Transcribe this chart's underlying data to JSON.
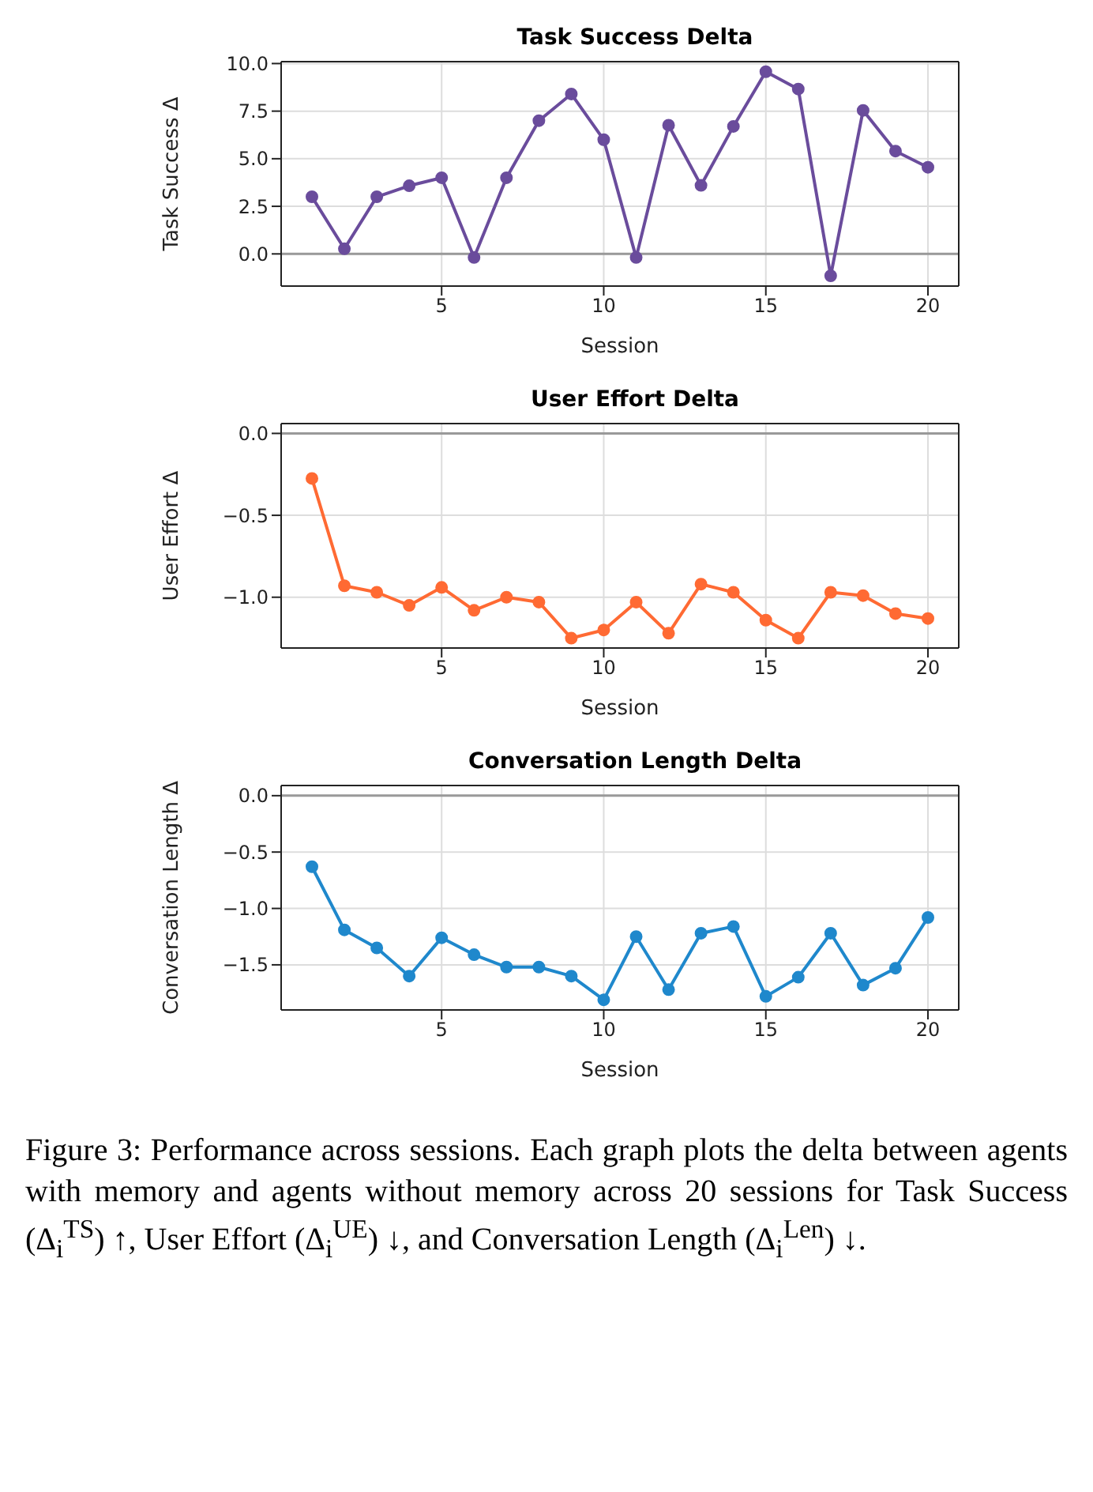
{
  "chart_data": [
    {
      "type": "line",
      "title": "Task Success Delta",
      "xlabel": "Session",
      "ylabel": "Task Success Δ",
      "x": [
        1,
        2,
        3,
        4,
        5,
        6,
        7,
        8,
        9,
        10,
        11,
        12,
        13,
        14,
        15,
        16,
        17,
        18,
        19,
        20
      ],
      "series": [
        {
          "color": "#6a4c9c",
          "values": [
            3.0,
            0.27,
            3.0,
            3.58,
            4.0,
            -0.19,
            4.0,
            7.0,
            8.4,
            6.0,
            -0.19,
            6.76,
            3.6,
            6.7,
            9.57,
            8.66,
            -1.15,
            7.54,
            5.4,
            4.55
          ]
        }
      ],
      "xlim": [
        0.05,
        20.95
      ],
      "xticks": [
        5,
        10,
        15,
        20
      ],
      "ylim": [
        -1.69,
        10.1
      ],
      "yticks": [
        {
          "value": 0,
          "label": "0.0"
        },
        2.5,
        {
          "value": 5,
          "label": "5.0"
        },
        7.5,
        {
          "value": 10,
          "label": "10.0"
        }
      ],
      "grid": true,
      "marker": "circle",
      "line_style": "solid",
      "ref_lines": [
        {
          "axis": "y",
          "value": 0,
          "color": "#999999"
        }
      ]
    },
    {
      "type": "line",
      "title": "User Effort Delta",
      "xlabel": "Session",
      "ylabel": "User Effort Δ",
      "x": [
        1,
        2,
        3,
        4,
        5,
        6,
        7,
        8,
        9,
        10,
        11,
        12,
        13,
        14,
        15,
        16,
        17,
        18,
        19,
        20
      ],
      "series": [
        {
          "color": "#ff6a33",
          "values": [
            -0.275,
            -0.93,
            -0.97,
            -1.05,
            -0.94,
            -1.08,
            -1.0,
            -1.03,
            -1.25,
            -1.2,
            -1.03,
            -1.22,
            -0.92,
            -0.97,
            -1.14,
            -1.25,
            -0.97,
            -0.99,
            -1.1,
            -1.13
          ]
        }
      ],
      "xlim": [
        0.05,
        20.95
      ],
      "xticks": [
        5,
        10,
        15,
        20
      ],
      "ylim": [
        -1.31,
        0.06
      ],
      "yticks": [
        {
          "value": -1,
          "label": "−1.0"
        },
        {
          "value": -0.5,
          "label": "−0.5"
        },
        {
          "value": 0,
          "label": "0.0"
        }
      ],
      "grid": true,
      "marker": "circle",
      "line_style": "solid",
      "ref_lines": [
        {
          "axis": "y",
          "value": 0,
          "color": "#999999"
        }
      ]
    },
    {
      "type": "line",
      "title": "Conversation Length Delta",
      "xlabel": "Session",
      "ylabel": "Conversation Length Δ",
      "x": [
        1,
        2,
        3,
        4,
        5,
        6,
        7,
        8,
        9,
        10,
        11,
        12,
        13,
        14,
        15,
        16,
        17,
        18,
        19,
        20
      ],
      "series": [
        {
          "color": "#1f88cc",
          "values": [
            -0.63,
            -1.19,
            -1.35,
            -1.6,
            -1.26,
            -1.41,
            -1.52,
            -1.52,
            -1.6,
            -1.81,
            -1.25,
            -1.72,
            -1.22,
            -1.16,
            -1.78,
            -1.61,
            -1.22,
            -1.68,
            -1.53,
            -1.08
          ]
        }
      ],
      "xlim": [
        0.05,
        20.95
      ],
      "xticks": [
        5,
        10,
        15,
        20
      ],
      "ylim": [
        -1.9,
        0.09
      ],
      "yticks": [
        {
          "value": -1.5,
          "label": "−1.5"
        },
        {
          "value": -1,
          "label": "−1.0"
        },
        {
          "value": -0.5,
          "label": "−0.5"
        },
        {
          "value": 0,
          "label": "0.0"
        }
      ],
      "grid": true,
      "marker": "circle",
      "line_style": "solid",
      "ref_lines": [
        {
          "axis": "y",
          "value": 0,
          "color": "#999999"
        }
      ],
      "annotations": [
        "Figure 3: Performance across sessions. Each graph plots the delta between agents with memory and agents without memory across 20 sessions for Task Success (Δ$_{i}$$^{TS}$) ↑, User Effort (Δ$_{i}$$^{UE}$) ↓, and Conversation Length (Δ$_{i}$$^{Len}$) ↓."
      ]
    }
  ]
}
